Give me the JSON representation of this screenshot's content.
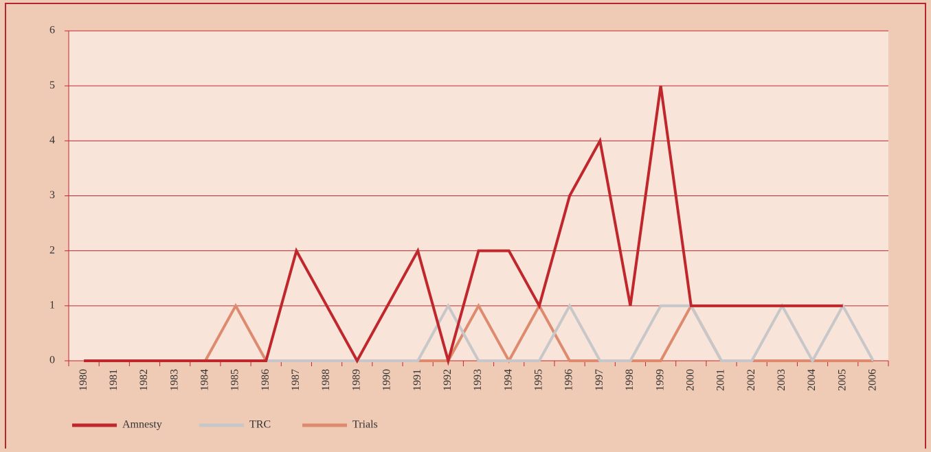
{
  "chart_data": {
    "type": "line",
    "categories": [
      "1980",
      "1981",
      "1982",
      "1983",
      "1984",
      "1985",
      "1986",
      "1987",
      "1988",
      "1989",
      "1990",
      "1991",
      "1992",
      "1993",
      "1994",
      "1995",
      "1996",
      "1997",
      "1998",
      "1999",
      "2000",
      "2001",
      "2002",
      "2003",
      "2004",
      "2005",
      "2006"
    ],
    "series": [
      {
        "name": "Amnesty",
        "color": "#c0272d",
        "values": [
          0,
          0,
          0,
          0,
          0,
          0,
          0,
          2,
          1,
          0,
          1,
          2,
          0,
          2,
          2,
          1,
          3,
          4,
          1,
          5,
          1,
          1,
          1,
          1,
          1,
          1,
          null
        ]
      },
      {
        "name": "TRC",
        "color": "#c7c7c9",
        "values": [
          0,
          0,
          0,
          0,
          0,
          0,
          0,
          0,
          0,
          0,
          0,
          0,
          1,
          0,
          0,
          0,
          1,
          0,
          0,
          1,
          1,
          0,
          0,
          1,
          0,
          1,
          0
        ]
      },
      {
        "name": "Trials",
        "color": "#dd8a6e",
        "values": [
          0,
          0,
          0,
          0,
          0,
          1,
          0,
          0,
          0,
          0,
          0,
          0,
          0,
          1,
          0,
          1,
          0,
          0,
          0,
          0,
          1,
          0,
          0,
          0,
          0,
          0,
          0
        ]
      }
    ],
    "ylim": [
      0,
      6
    ],
    "yticks": [
      0,
      1,
      2,
      3,
      4,
      5,
      6
    ],
    "grid": true,
    "legend": "bottom"
  }
}
